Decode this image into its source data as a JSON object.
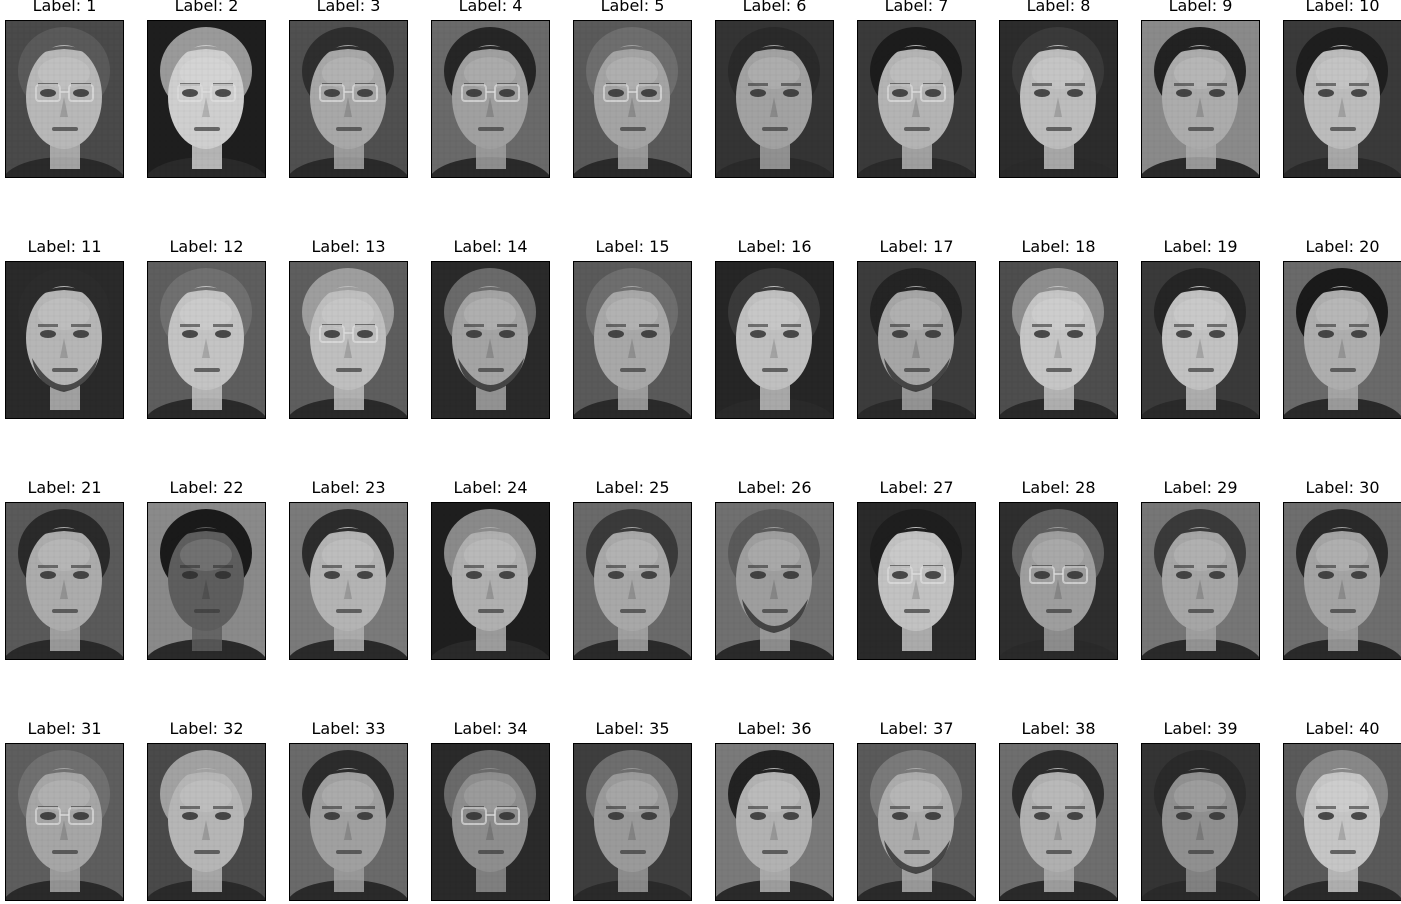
{
  "figure": {
    "title": "",
    "labels": [
      "Label: 1",
      "Label: 2",
      "Label: 3",
      "Label: 4",
      "Label: 5",
      "Label: 6",
      "Label: 7",
      "Label: 8",
      "Label: 9",
      "Label: 10",
      "Label: 11",
      "Label: 12",
      "Label: 13",
      "Label: 14",
      "Label: 15",
      "Label: 16",
      "Label: 17",
      "Label: 18",
      "Label: 19",
      "Label: 20",
      "Label: 21",
      "Label: 22",
      "Label: 23",
      "Label: 24",
      "Label: 25",
      "Label: 26",
      "Label: 27",
      "Label: 28",
      "Label: 29",
      "Label: 30",
      "Label: 31",
      "Label: 32",
      "Label: 33",
      "Label: 34",
      "Label: 35",
      "Label: 36",
      "Label: 37",
      "Label: 38",
      "Label: 39",
      "Label: 40"
    ],
    "rows": 4,
    "columns": 10,
    "image_style": "grayscale pixelated face thumbnails",
    "colors": {
      "background": "#ffffff",
      "label_text": "#000000",
      "frame": "#000000"
    },
    "faces": [
      {
        "bg": "#4a4a4a",
        "skin": "#b8b8b8",
        "hair": "#5a5a5a",
        "features": "glasses"
      },
      {
        "bg": "#1e1e1e",
        "skin": "#cfcfcf",
        "hair": "#9a9a9a",
        "features": "glasses"
      },
      {
        "bg": "#505050",
        "skin": "#a8a8a8",
        "hair": "#2e2e2e",
        "features": "glasses"
      },
      {
        "bg": "#6a6a6a",
        "skin": "#a0a0a0",
        "hair": "#262626",
        "features": "glasses"
      },
      {
        "bg": "#5a5a5a",
        "skin": "#a4a4a4",
        "hair": "#6e6e6e",
        "features": "glasses"
      },
      {
        "bg": "#343434",
        "skin": "#a2a2a2",
        "hair": "#2a2a2a",
        "features": "none"
      },
      {
        "bg": "#3a3a3a",
        "skin": "#b4b4b4",
        "hair": "#1c1c1c",
        "features": "glasses"
      },
      {
        "bg": "#2c2c2c",
        "skin": "#bdbdbd",
        "hair": "#3a3a3a",
        "features": "none"
      },
      {
        "bg": "#8a8a8a",
        "skin": "#acacac",
        "hair": "#222222",
        "features": "none"
      },
      {
        "bg": "#3a3a3a",
        "skin": "#bcbcbc",
        "hair": "#1e1e1e",
        "features": "none"
      },
      {
        "bg": "#2a2a2a",
        "skin": "#b6b6b6",
        "hair": "#2c2c2c",
        "features": "beard"
      },
      {
        "bg": "#5e5e5e",
        "skin": "#c4c4c4",
        "hair": "#707070",
        "features": "none"
      },
      {
        "bg": "#5e5e5e",
        "skin": "#bfbfbf",
        "hair": "#9e9e9e",
        "features": "glasses"
      },
      {
        "bg": "#2a2a2a",
        "skin": "#a4a4a4",
        "hair": "#6a6a6a",
        "features": "beard"
      },
      {
        "bg": "#5a5a5a",
        "skin": "#a8a8a8",
        "hair": "#6e6e6e",
        "features": "none"
      },
      {
        "bg": "#262626",
        "skin": "#c0c0c0",
        "hair": "#3a3a3a",
        "features": "none"
      },
      {
        "bg": "#3c3c3c",
        "skin": "#a6a6a6",
        "hair": "#242424",
        "features": "beard"
      },
      {
        "bg": "#4e4e4e",
        "skin": "#c6c6c6",
        "hair": "#8e8e8e",
        "features": "none"
      },
      {
        "bg": "#3a3a3a",
        "skin": "#c2c2c2",
        "hair": "#252525",
        "features": "none"
      },
      {
        "bg": "#6a6a6a",
        "skin": "#aeaeae",
        "hair": "#1a1a1a",
        "features": "none"
      },
      {
        "bg": "#5a5a5a",
        "skin": "#acacac",
        "hair": "#2a2a2a",
        "features": "none"
      },
      {
        "bg": "#8a8a8a",
        "skin": "#5e5e5e",
        "hair": "#1a1a1a",
        "features": "none"
      },
      {
        "bg": "#7a7a7a",
        "skin": "#b4b4b4",
        "hair": "#2c2c2c",
        "features": "none"
      },
      {
        "bg": "#1e1e1e",
        "skin": "#b0b0b0",
        "hair": "#8a8a8a",
        "features": "none"
      },
      {
        "bg": "#6a6a6a",
        "skin": "#a8a8a8",
        "hair": "#3a3a3a",
        "features": "none"
      },
      {
        "bg": "#707070",
        "skin": "#9e9e9e",
        "hair": "#5a5a5a",
        "features": "beard"
      },
      {
        "bg": "#2a2a2a",
        "skin": "#c2c2c2",
        "hair": "#1e1e1e",
        "features": "glasses"
      },
      {
        "bg": "#2e2e2e",
        "skin": "#9e9e9e",
        "hair": "#5e5e5e",
        "features": "glasses"
      },
      {
        "bg": "#767676",
        "skin": "#a6a6a6",
        "hair": "#3a3a3a",
        "features": "none"
      },
      {
        "bg": "#6e6e6e",
        "skin": "#a4a4a4",
        "hair": "#2a2a2a",
        "features": "none"
      },
      {
        "bg": "#5e5e5e",
        "skin": "#a6a6a6",
        "hair": "#707070",
        "features": "glasses"
      },
      {
        "bg": "#4a4a4a",
        "skin": "#b6b6b6",
        "hair": "#a2a2a2",
        "features": "none"
      },
      {
        "bg": "#6a6a6a",
        "skin": "#a0a0a0",
        "hair": "#2c2c2c",
        "features": "none"
      },
      {
        "bg": "#2a2a2a",
        "skin": "#8e8e8e",
        "hair": "#6a6a6a",
        "features": "glasses"
      },
      {
        "bg": "#3e3e3e",
        "skin": "#9a9a9a",
        "hair": "#6e6e6e",
        "features": "none"
      },
      {
        "bg": "#7a7a7a",
        "skin": "#b2b2b2",
        "hair": "#222222",
        "features": "none"
      },
      {
        "bg": "#5a5a5a",
        "skin": "#acacac",
        "hair": "#7a7a7a",
        "features": "beard"
      },
      {
        "bg": "#6e6e6e",
        "skin": "#b0b0b0",
        "hair": "#2c2c2c",
        "features": "none"
      },
      {
        "bg": "#343434",
        "skin": "#909090",
        "hair": "#2a2a2a",
        "features": "none"
      },
      {
        "bg": "#5a5a5a",
        "skin": "#c6c6c6",
        "hair": "#888888",
        "features": "none"
      }
    ]
  }
}
